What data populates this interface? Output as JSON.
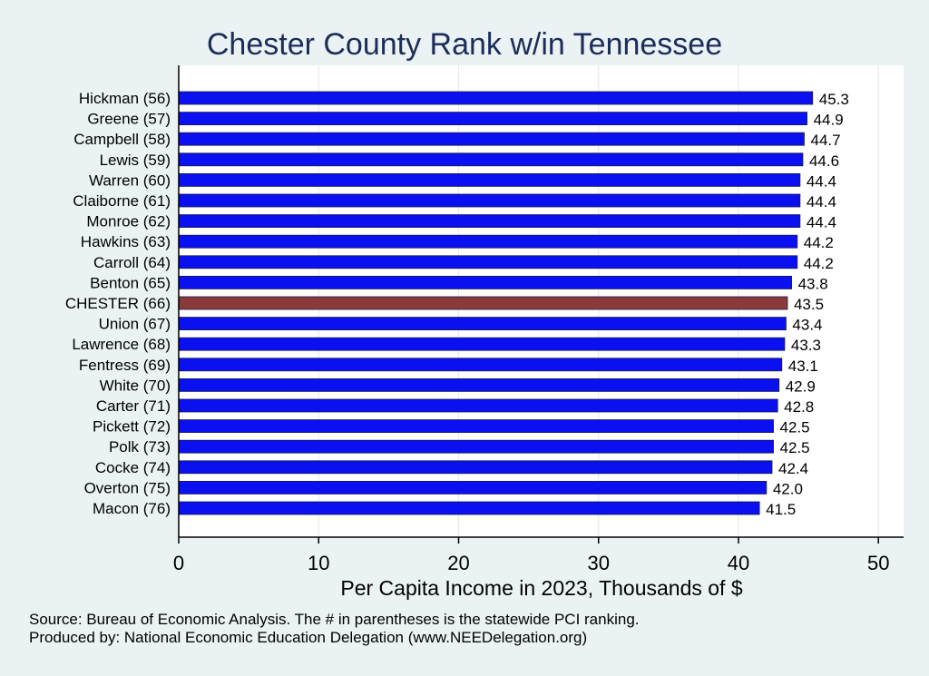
{
  "chart_data": {
    "type": "bar",
    "orientation": "horizontal",
    "title": "Chester County Rank w/in Tennessee",
    "xlabel": "Per Capita Income in 2023, Thousands of $",
    "ylabel": "",
    "xlim": [
      0,
      51.8
    ],
    "xticks": [
      0,
      10,
      20,
      30,
      40,
      50
    ],
    "grid": true,
    "categories": [
      "Hickman (56)",
      "Greene (57)",
      "Campbell (58)",
      "Lewis (59)",
      "Warren (60)",
      "Claiborne (61)",
      "Monroe (62)",
      "Hawkins (63)",
      "Carroll (64)",
      "Benton (65)",
      "CHESTER (66)",
      "Union (67)",
      "Lawrence (68)",
      "Fentress (69)",
      "White (70)",
      "Carter (71)",
      "Pickett (72)",
      "Polk (73)",
      "Cocke (74)",
      "Overton (75)",
      "Macon (76)"
    ],
    "values": [
      45.3,
      44.9,
      44.7,
      44.6,
      44.4,
      44.4,
      44.4,
      44.2,
      44.2,
      43.8,
      43.5,
      43.4,
      43.3,
      43.1,
      42.9,
      42.8,
      42.5,
      42.5,
      42.4,
      42.0,
      41.5
    ],
    "value_labels": [
      "45.3",
      "44.9",
      "44.7",
      "44.6",
      "44.4",
      "44.4",
      "44.4",
      "44.2",
      "44.2",
      "43.8",
      "43.5",
      "43.4",
      "43.3",
      "43.1",
      "42.9",
      "42.8",
      "42.5",
      "42.5",
      "42.4",
      "42.0",
      "41.5"
    ],
    "highlight_category": "CHESTER (66)",
    "colors": {
      "bar": "#0a10f0",
      "highlight": "#8b3a3a",
      "plot_bg": "#ffffff",
      "page_bg": "#eaf2f3",
      "title": "#1c2d5a",
      "grid": "#e6ecee"
    }
  },
  "notes": {
    "source": "Source: Bureau of Economic Analysis. The # in parentheses is the statewide PCI ranking.",
    "produced_by": "Produced by: National Economic Education Delegation (www.NEEDelegation.org)"
  }
}
